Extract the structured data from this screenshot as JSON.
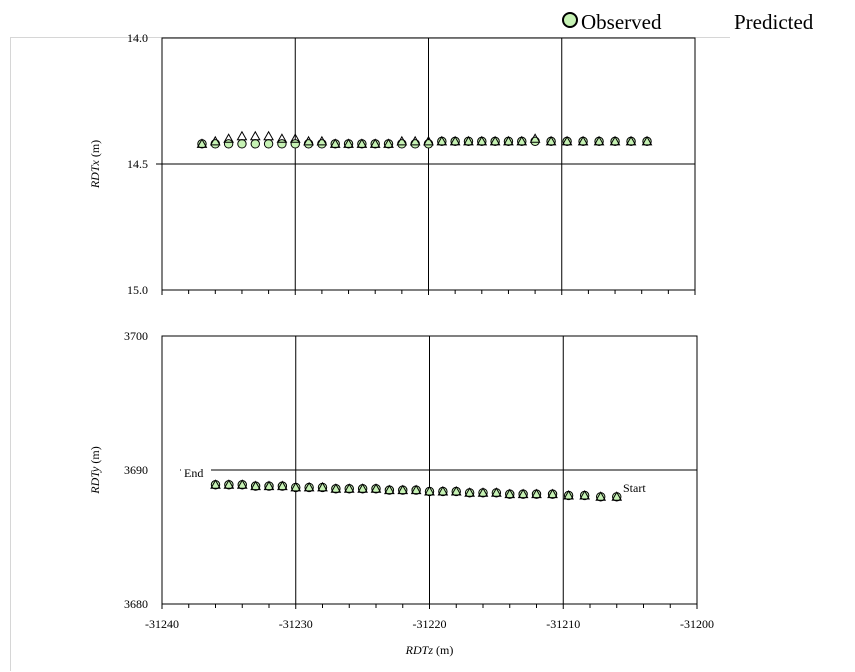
{
  "legend": {
    "observed": "Observed",
    "predicted": "Predicted",
    "observed_marker_color": "#c6f2b4",
    "predicted_marker_color": "#ffffff"
  },
  "chart_data": [
    {
      "type": "scatter",
      "panel": "top",
      "ylabel": "RDTx (m)",
      "ylim": [
        14.0,
        15.0
      ],
      "y_inverted": true,
      "yticks": [
        "14.0",
        "14.5",
        "15.0"
      ],
      "xlim": [
        -31240,
        -31200
      ],
      "grid": true,
      "series": [
        {
          "name": "Observed",
          "color": "#c6f2b4",
          "x": [
            -31237,
            -31236,
            -31235,
            -31234,
            -31233,
            -31232,
            -31231,
            -31230,
            -31229,
            -31228,
            -31227,
            -31226,
            -31225,
            -31224,
            -31223,
            -31222,
            -31221,
            -31220,
            -31219,
            -31218,
            -31217,
            -31216,
            -31215,
            -31214,
            -31213,
            -31212,
            -31210.8,
            -31209.6,
            -31208.4,
            -31207.2,
            -31206,
            -31204.8,
            -31203.6
          ],
          "y": [
            14.42,
            14.42,
            14.42,
            14.42,
            14.42,
            14.42,
            14.42,
            14.42,
            14.42,
            14.42,
            14.42,
            14.42,
            14.42,
            14.42,
            14.42,
            14.42,
            14.42,
            14.42,
            14.41,
            14.41,
            14.41,
            14.41,
            14.41,
            14.41,
            14.41,
            14.41,
            14.41,
            14.41,
            14.41,
            14.41,
            14.41,
            14.41,
            14.41
          ]
        },
        {
          "name": "Predicted",
          "color": "#ffffff",
          "x": [
            -31237,
            -31236,
            -31235,
            -31234,
            -31233,
            -31232,
            -31231,
            -31230,
            -31229,
            -31228,
            -31227,
            -31226,
            -31225,
            -31224,
            -31223,
            -31222,
            -31221,
            -31220,
            -31219,
            -31218,
            -31217,
            -31216,
            -31215,
            -31214,
            -31213,
            -31212,
            -31210.8,
            -31209.6,
            -31208.4,
            -31207.2,
            -31206,
            -31204.8,
            -31203.6
          ],
          "y": [
            14.42,
            14.41,
            14.4,
            14.39,
            14.39,
            14.39,
            14.4,
            14.4,
            14.41,
            14.41,
            14.42,
            14.42,
            14.42,
            14.42,
            14.42,
            14.41,
            14.41,
            14.41,
            14.41,
            14.41,
            14.41,
            14.41,
            14.41,
            14.41,
            14.41,
            14.4,
            14.41,
            14.41,
            14.41,
            14.41,
            14.41,
            14.41,
            14.41
          ]
        }
      ]
    },
    {
      "type": "scatter",
      "panel": "bottom",
      "ylabel": "RDTy (m)",
      "xlabel": "RDTz (m)",
      "ylim": [
        3680,
        3700
      ],
      "yticks": [
        "3700",
        "3690",
        "3680"
      ],
      "xlim": [
        -31240,
        -31200
      ],
      "xticks": [
        "-31240",
        "-31230",
        "-31220",
        "-31210",
        "-31200"
      ],
      "grid": true,
      "annotations": [
        "End",
        "Start"
      ],
      "series": [
        {
          "name": "Observed",
          "color": "#c6f2b4",
          "x": [
            -31236,
            -31235,
            -31234,
            -31233,
            -31232,
            -31231,
            -31230,
            -31229,
            -31228,
            -31227,
            -31226,
            -31225,
            -31224,
            -31223,
            -31222,
            -31221,
            -31220,
            -31219,
            -31218,
            -31217,
            -31216,
            -31215,
            -31214,
            -31213,
            -31212,
            -31210.8,
            -31209.6,
            -31208.4,
            -31207.2,
            -31206
          ],
          "y": [
            3688.9,
            3688.9,
            3688.9,
            3688.8,
            3688.8,
            3688.8,
            3688.7,
            3688.7,
            3688.7,
            3688.6,
            3688.6,
            3688.6,
            3688.6,
            3688.5,
            3688.5,
            3688.5,
            3688.4,
            3688.4,
            3688.4,
            3688.3,
            3688.3,
            3688.3,
            3688.2,
            3688.2,
            3688.2,
            3688.2,
            3688.1,
            3688.1,
            3688.0,
            3688.0
          ]
        },
        {
          "name": "Predicted",
          "color": "#ffffff",
          "x": [
            -31236,
            -31235,
            -31234,
            -31233,
            -31232,
            -31231,
            -31230,
            -31229,
            -31228,
            -31227,
            -31226,
            -31225,
            -31224,
            -31223,
            -31222,
            -31221,
            -31220,
            -31219,
            -31218,
            -31217,
            -31216,
            -31215,
            -31214,
            -31213,
            -31212,
            -31210.8,
            -31209.6,
            -31208.4,
            -31207.2,
            -31206
          ],
          "y": [
            3688.9,
            3688.9,
            3688.9,
            3688.8,
            3688.8,
            3688.8,
            3688.7,
            3688.7,
            3688.7,
            3688.6,
            3688.6,
            3688.6,
            3688.6,
            3688.5,
            3688.5,
            3688.5,
            3688.4,
            3688.4,
            3688.4,
            3688.3,
            3688.3,
            3688.3,
            3688.2,
            3688.2,
            3688.2,
            3688.2,
            3688.1,
            3688.1,
            3688.0,
            3688.0
          ]
        }
      ]
    }
  ]
}
